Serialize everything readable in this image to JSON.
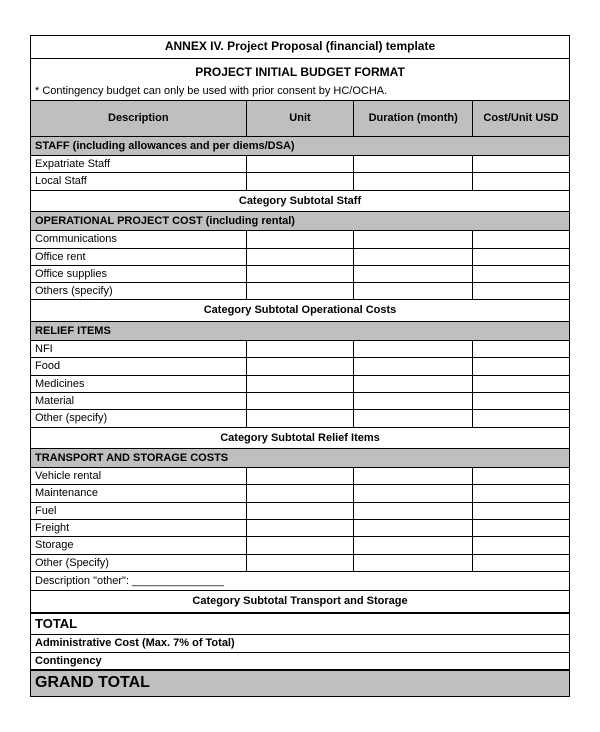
{
  "title": "ANNEX IV. Project Proposal (financial) template",
  "subtitle": "PROJECT INITIAL BUDGET FORMAT",
  "note": "* Contingency budget can only be used with prior consent by HC/OCHA.",
  "columns": {
    "description": "Description",
    "unit": "Unit",
    "duration": "Duration (month)",
    "cost": "Cost/Unit USD"
  },
  "sections": [
    {
      "header": "STAFF (including allowances and per diems/DSA)",
      "items": [
        "Expatriate Staff",
        "Local Staff"
      ],
      "subtotal": "Category Subtotal Staff"
    },
    {
      "header": "OPERATIONAL PROJECT COST (including rental)",
      "items": [
        "Communications",
        "Office rent",
        "Office supplies",
        "Others (specify)"
      ],
      "subtotal": "Category Subtotal Operational Costs"
    },
    {
      "header": "RELIEF ITEMS",
      "items": [
        "NFI",
        "Food",
        "Medicines",
        "Material",
        "Other (specify)"
      ],
      "subtotal": "Category Subtotal Relief Items"
    },
    {
      "header": "TRANSPORT AND STORAGE COSTS",
      "items": [
        "Vehicle rental",
        "Maintenance",
        "Fuel",
        "Freight",
        "Storage",
        "Other (Specify)"
      ],
      "desc_other": "Description \"other\": _______________",
      "subtotal": "Category Subtotal Transport and Storage"
    }
  ],
  "totals": {
    "total": "TOTAL",
    "admin": "Administrative Cost (Max. 7% of Total)",
    "contingency": "Contingency",
    "grand": "GRAND TOTAL"
  },
  "colors": {
    "header_bg": "#bfbfbf",
    "border": "#000000",
    "background": "#ffffff"
  }
}
